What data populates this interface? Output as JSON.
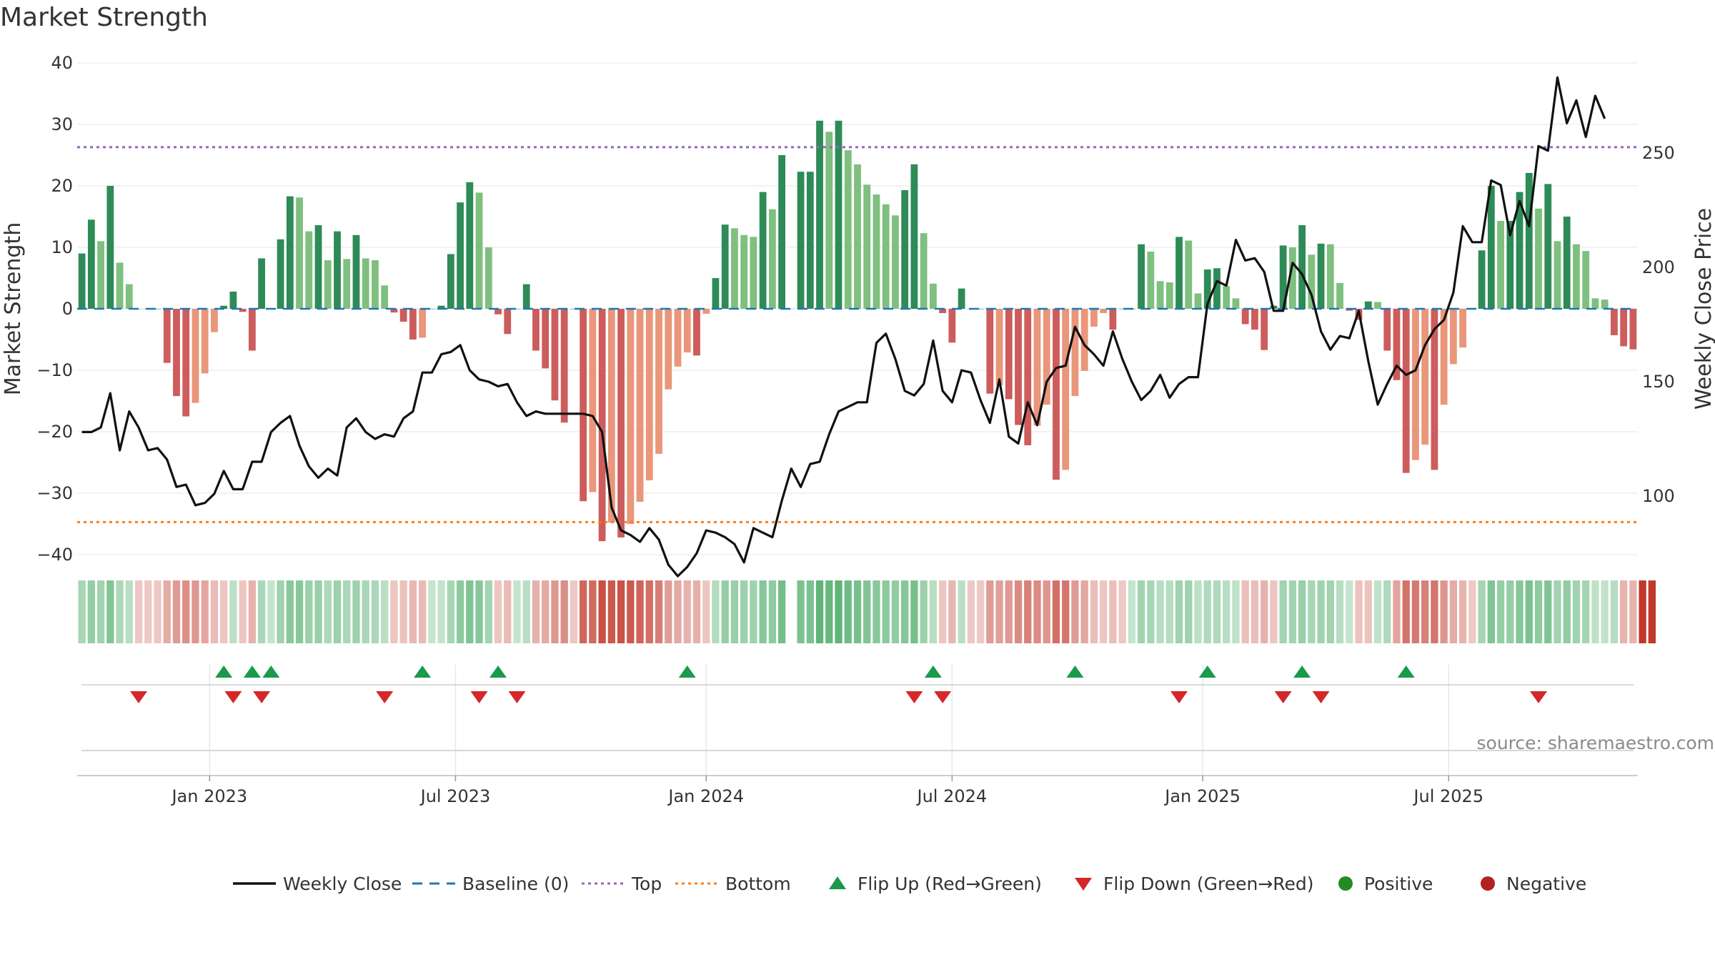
{
  "chart_data": {
    "type": "bar",
    "title": "Market Strength",
    "ylabel": "Market Strength",
    "y2label": "Weekly Close Price",
    "ylim": [
      -40,
      40
    ],
    "y2lim": [
      65,
      285
    ],
    "yticks": [
      40,
      30,
      20,
      10,
      0,
      -10,
      -20,
      -30,
      -40
    ],
    "ytick_labels": [
      "40",
      "30",
      "20",
      "10",
      "0",
      "−10",
      "−20",
      "−30",
      "−40"
    ],
    "y2ticks": [
      250,
      200,
      150,
      100
    ],
    "y2tick_labels": [
      "250",
      "200",
      "150",
      "100"
    ],
    "xticks": [
      {
        "week": 14,
        "label": "Jan 2023"
      },
      {
        "week": 40,
        "label": "Jul 2023"
      },
      {
        "week": 66.5,
        "label": "Jan 2024"
      },
      {
        "week": 92.5,
        "label": "Jul 2024"
      },
      {
        "week": 119,
        "label": "Jan 2025"
      },
      {
        "week": 145,
        "label": "Jul 2025"
      }
    ],
    "top_level": 26.3,
    "bottom_level": -34.7,
    "strength": [
      9,
      14.5,
      11,
      20,
      7.5,
      4,
      0,
      0,
      0,
      -8.8,
      -14.2,
      -17.5,
      -15.3,
      -10.5,
      -3.8,
      0.5,
      2.8,
      -0.5,
      -6.8,
      8.2,
      0,
      11.3,
      18.3,
      18.1,
      12.6,
      13.6,
      7.9,
      12.6,
      8.1,
      12,
      8.2,
      7.9,
      3.8,
      -0.6,
      -2.1,
      -5,
      -4.7,
      0,
      0.5,
      8.9,
      17.3,
      20.6,
      18.9,
      10,
      -0.9,
      -4.1,
      0,
      4,
      -6.8,
      -9.7,
      -14.9,
      -18.5,
      0,
      -31.3,
      -29.8,
      -37.8,
      -34.8,
      -37.2,
      -35,
      -31.4,
      -27.9,
      -23.6,
      -13.1,
      -9.4,
      -7.1,
      -7.6,
      -0.8,
      5,
      13.7,
      13.1,
      12,
      11.7,
      19,
      16.2,
      25,
      0,
      22.3,
      22.3,
      30.6,
      28.8,
      30.6,
      25.8,
      23.5,
      20.2,
      18.6,
      17,
      15.2,
      19.3,
      23.5,
      12.3,
      4.1,
      -0.7,
      -5.5,
      3.3,
      0,
      0,
      -13.8,
      -12.4,
      -14.7,
      -18.9,
      -22.2,
      -19,
      -15.6,
      -27.8,
      -26.2,
      -14.2,
      -10.1,
      -2.9,
      -0.7,
      -3.4,
      0,
      0,
      10.5,
      9.3,
      4.5,
      4.3,
      11.7,
      11.1,
      2.5,
      6.4,
      6.6,
      3.7,
      1.7,
      -2.5,
      -3.4,
      -6.7,
      0.5,
      10.3,
      10,
      13.6,
      8.8,
      10.6,
      10.5,
      4.2,
      -0.3,
      -1.8,
      1.2,
      1.1,
      -6.8,
      -11.6,
      -26.7,
      -24.6,
      -22.1,
      -26.2,
      -15.6,
      -9,
      -6.3,
      0,
      9.5,
      20,
      14.3,
      14.3,
      19,
      22.1,
      16.3,
      20.3,
      11,
      15,
      10.5,
      9.4,
      1.7,
      1.5,
      -4.3,
      -6.1,
      -6.6
    ],
    "weekly_close": [
      128,
      128,
      130,
      145,
      120,
      137,
      130,
      120,
      121,
      116,
      104,
      105,
      96,
      97,
      101,
      111,
      103,
      103,
      115,
      115,
      128,
      132,
      135,
      122,
      113,
      108,
      112,
      109,
      130,
      134,
      128,
      125,
      127,
      126,
      134,
      137,
      154,
      154,
      162,
      163,
      166,
      155,
      151,
      150,
      148,
      149,
      141,
      135,
      137,
      136,
      136,
      136,
      136,
      136,
      135,
      128,
      95,
      85,
      83,
      80,
      86,
      81,
      70,
      65,
      69,
      75,
      85,
      84,
      82,
      79,
      71,
      86,
      84,
      82,
      98,
      112,
      104,
      114,
      115,
      127,
      137,
      139,
      141,
      141,
      167,
      171,
      160,
      146,
      144,
      149,
      168,
      146,
      141,
      155,
      154,
      142,
      132,
      151,
      126,
      123,
      141,
      131,
      150,
      156,
      157,
      174,
      166,
      162,
      157,
      172,
      160,
      150,
      142,
      146,
      153,
      143,
      149,
      152,
      152,
      184,
      194,
      192,
      212,
      203,
      204,
      198,
      181,
      181,
      202,
      197,
      188,
      172,
      164,
      170,
      169,
      181,
      159,
      140,
      149,
      157,
      153,
      155,
      166,
      173,
      177,
      189,
      218,
      211,
      211,
      238,
      236,
      214,
      229,
      218,
      253,
      251,
      283,
      263,
      273,
      257,
      275,
      265
    ],
    "band": [
      "pos",
      "pos",
      "pos",
      "pos",
      "pos",
      "pos",
      "neg",
      "neg",
      "neg",
      "neg",
      "neg",
      "neg",
      "neg",
      "neg",
      "neg",
      "neg",
      "pos",
      "neg",
      "neg",
      "pos",
      "pos",
      "pos",
      "pos",
      "pos",
      "pos",
      "pos",
      "pos",
      "pos",
      "pos",
      "pos",
      "pos",
      "pos",
      "pos",
      "neg",
      "neg",
      "neg",
      "neg",
      "pos",
      "pos",
      "pos",
      "pos",
      "pos",
      "pos",
      "pos",
      "neg",
      "neg",
      "pos",
      "pos",
      "neg",
      "neg",
      "neg",
      "neg",
      "neg",
      "neg",
      "neg",
      "neg",
      "neg",
      "neg",
      "neg",
      "neg",
      "neg",
      "neg",
      "neg",
      "neg",
      "neg",
      "neg",
      "neg",
      "pos",
      "pos",
      "pos",
      "pos",
      "pos",
      "pos",
      "pos",
      "pos",
      "none",
      "pos",
      "pos",
      "pos",
      "pos",
      "pos",
      "pos",
      "pos",
      "pos",
      "pos",
      "pos",
      "pos",
      "pos",
      "pos",
      "pos",
      "pos",
      "neg",
      "neg",
      "pos",
      "neg",
      "neg",
      "neg",
      "neg",
      "neg",
      "neg",
      "neg",
      "neg",
      "neg",
      "neg",
      "neg",
      "neg",
      "neg",
      "neg",
      "neg",
      "neg",
      "neg",
      "pos",
      "pos",
      "pos",
      "pos",
      "pos",
      "pos",
      "pos",
      "pos",
      "pos",
      "pos",
      "pos",
      "pos",
      "neg",
      "neg",
      "neg",
      "neg",
      "pos",
      "pos",
      "pos",
      "pos",
      "pos",
      "pos",
      "pos",
      "pos",
      "neg",
      "neg",
      "pos",
      "pos",
      "neg",
      "neg",
      "neg",
      "neg",
      "neg",
      "neg",
      "neg",
      "neg",
      "neg",
      "pos",
      "pos",
      "pos",
      "pos",
      "pos",
      "pos",
      "pos",
      "pos",
      "pos",
      "pos",
      "pos",
      "pos",
      "pos",
      "pos",
      "pos",
      "neg",
      "neg",
      "neg",
      "neg"
    ],
    "flip_up_weeks": [
      15,
      18,
      20,
      36,
      44,
      64,
      90,
      105,
      119,
      129,
      140
    ],
    "flip_down_weeks": [
      6,
      16,
      19,
      32,
      42,
      46,
      88,
      91,
      116,
      127,
      131,
      154
    ],
    "legend": [
      {
        "key": "weekly_close",
        "label": "Weekly Close"
      },
      {
        "key": "baseline",
        "label": "Baseline (0)"
      },
      {
        "key": "top",
        "label": "Top"
      },
      {
        "key": "bottom",
        "label": "Bottom"
      },
      {
        "key": "flip_up",
        "label": "Flip Up (Red→Green)"
      },
      {
        "key": "flip_down",
        "label": "Flip Down (Green→Red)"
      },
      {
        "key": "positive",
        "label": "Positive"
      },
      {
        "key": "negative",
        "label": "Negative"
      }
    ],
    "source": "source: sharemaestro.com",
    "colors": {
      "strong_pos": "#2e8b57",
      "weak_pos": "#7fbf7f",
      "strong_neg": "#cd5c5c",
      "weak_neg": "#e9967a",
      "line": "#111111",
      "baseline": "#1f77b4",
      "top": "#9467bd",
      "bottom": "#ff7f0e",
      "flip_up": "#1a9a4a",
      "flip_down": "#d62728",
      "positive_dot": "#228b22",
      "negative_dot": "#b22222"
    }
  }
}
